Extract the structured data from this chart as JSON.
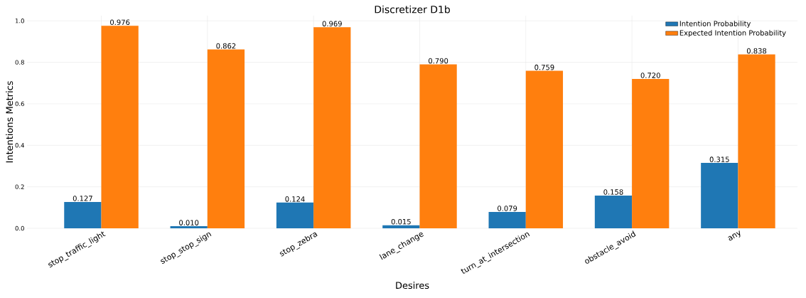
{
  "chart_data": {
    "type": "bar",
    "title": "Discretizer D1b",
    "xlabel": "Desires",
    "ylabel": "Intentions Metrics",
    "categories": [
      "stop_traffic_light",
      "stop_stop_sign",
      "stop_zebra",
      "lane_change",
      "turn_at_intersection",
      "obstacle_avoid",
      "any"
    ],
    "series": [
      {
        "name": "Intention Probability",
        "color": "#1f77b4",
        "values": [
          0.127,
          0.01,
          0.124,
          0.015,
          0.079,
          0.158,
          0.315
        ],
        "value_labels": [
          "0.127",
          "0.010",
          "0.124",
          "0.015",
          "0.079",
          "0.158",
          "0.315"
        ]
      },
      {
        "name": "Expected Intention Probability",
        "color": "#ff7f0e",
        "values": [
          0.976,
          0.862,
          0.969,
          0.79,
          0.759,
          0.72,
          0.838
        ],
        "value_labels": [
          "0.976",
          "0.862",
          "0.969",
          "0.790",
          "0.759",
          "0.720",
          "0.838"
        ]
      }
    ],
    "ylim": [
      0,
      1.025
    ],
    "yticks": [
      {
        "value": 0,
        "label": "0.0"
      },
      {
        "value": 0.2,
        "label": "0.2"
      },
      {
        "value": 0.4,
        "label": "0.4"
      },
      {
        "value": 0.6,
        "label": "0.6"
      },
      {
        "value": 0.8,
        "label": "0.8"
      },
      {
        "value": 1.0,
        "label": "1.0"
      }
    ],
    "grid": true,
    "legend": "top right"
  }
}
